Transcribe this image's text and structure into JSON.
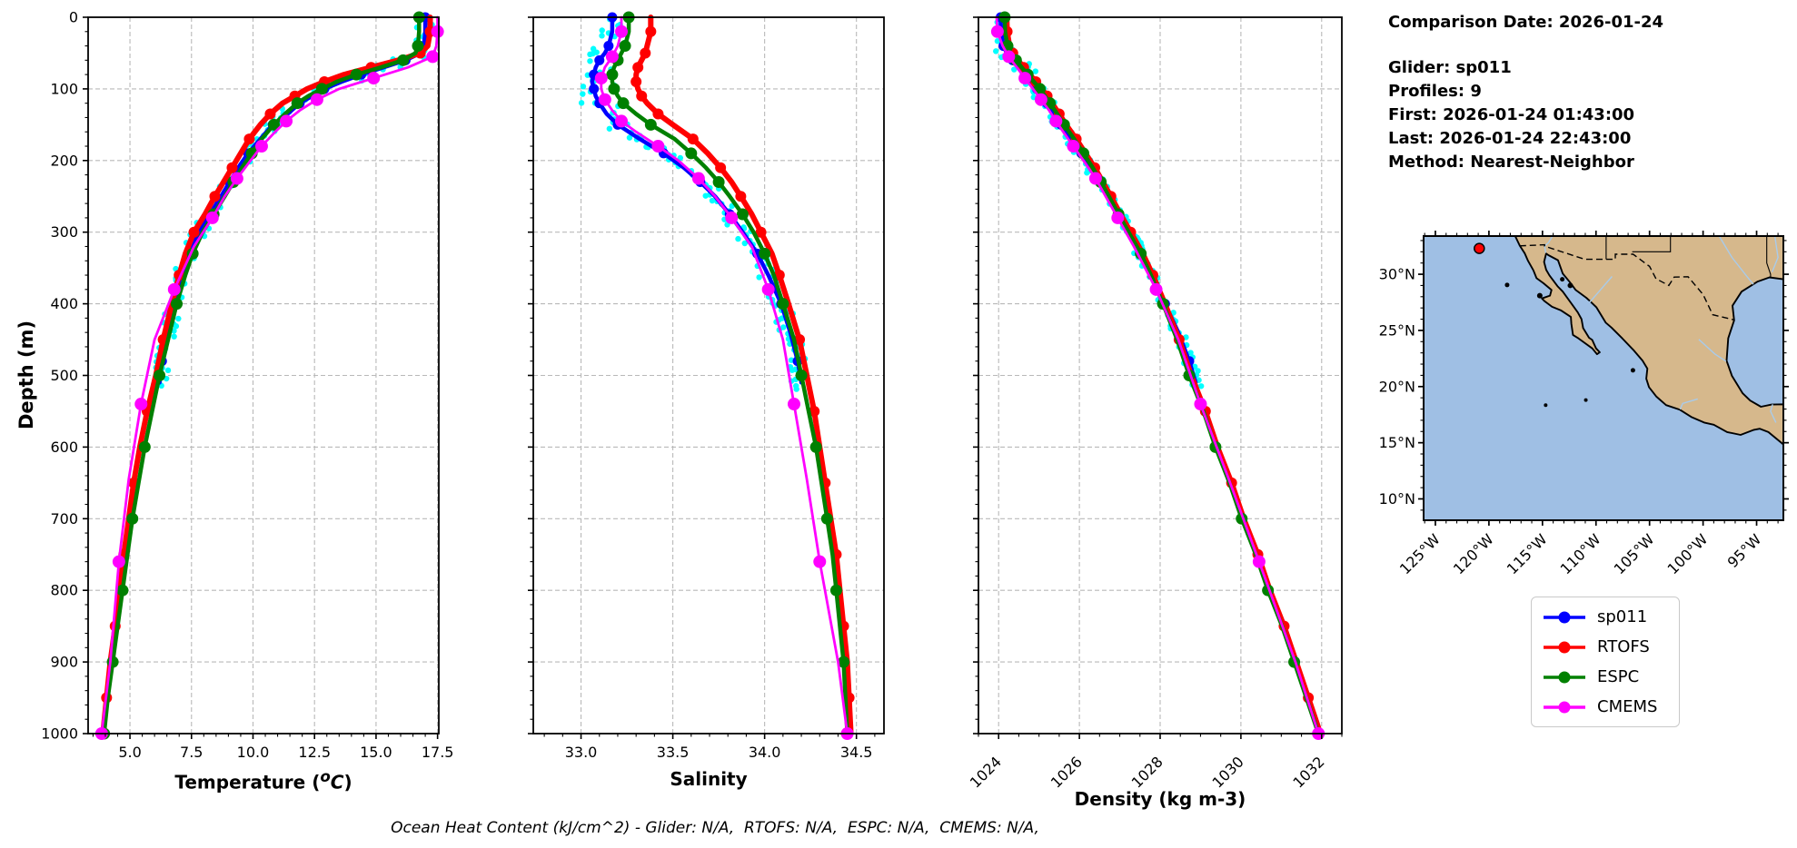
{
  "header": {
    "comparison_date": "Comparison Date: 2026-01-24",
    "glider": "Glider: sp011",
    "profiles": "Profiles: 9",
    "first": "First: 2026-01-24 01:43:00",
    "last": "Last: 2026-01-24 22:43:00",
    "method": "Method: Nearest-Neighbor"
  },
  "axes": {
    "temp_label_prefix": "Temperature (",
    "temp_label_sup": "o",
    "temp_label_c": "C",
    "temp_label_suffix": ")",
    "sal_label": "Salinity",
    "dens_label": "Density (kg m-3)",
    "depth_label": "Depth (m)"
  },
  "footer": {
    "ohc_text": "Ocean Heat Content (kJ/cm^2) - Glider: N/A,  RTOFS: N/A,  ESPC: N/A,  CMEMS: N/A,"
  },
  "chart_data": {
    "type": "line",
    "orientation": "depth-profile",
    "depth_axis": {
      "lim": [
        0,
        1000
      ],
      "ticks": [
        {
          "v": 0,
          "label": "0"
        },
        {
          "v": 100,
          "label": "100"
        },
        {
          "v": 200,
          "label": "200"
        },
        {
          "v": 300,
          "label": "300"
        },
        {
          "v": 400,
          "label": "400"
        },
        {
          "v": 500,
          "label": "500"
        },
        {
          "v": 600,
          "label": "600"
        },
        {
          "v": 700,
          "label": "700"
        },
        {
          "v": 800,
          "label": "800"
        },
        {
          "v": 900,
          "label": "900"
        },
        {
          "v": 1000,
          "label": "1000"
        }
      ],
      "minor_step": 20
    },
    "panels": {
      "temp": {
        "xlim": [
          3.3,
          17.55
        ],
        "xticks": [
          {
            "v": 5.0,
            "label": "5.0"
          },
          {
            "v": 7.5,
            "label": "7.5"
          },
          {
            "v": 10.0,
            "label": "10.0"
          },
          {
            "v": 12.5,
            "label": "12.5"
          },
          {
            "v": 15.0,
            "label": "15.0"
          },
          {
            "v": 17.5,
            "label": "17.5"
          }
        ],
        "minor_step": 0.5,
        "rotate_labels": false
      },
      "sal": {
        "xlim": [
          32.74,
          34.65
        ],
        "xticks": [
          {
            "v": 33.0,
            "label": "33.0"
          },
          {
            "v": 33.5,
            "label": "33.5"
          },
          {
            "v": 34.0,
            "label": "34.0"
          },
          {
            "v": 34.5,
            "label": "34.5"
          }
        ],
        "minor_step": 0.1,
        "rotate_labels": false
      },
      "dens": {
        "xlim": [
          1023.5,
          1032.5
        ],
        "xticks": [
          {
            "v": 1024,
            "label": "1024"
          },
          {
            "v": 1026,
            "label": "1026"
          },
          {
            "v": 1028,
            "label": "1028"
          },
          {
            "v": 1030,
            "label": "1030"
          },
          {
            "v": 1032,
            "label": "1032"
          }
        ],
        "minor_step": 0.5,
        "rotate_labels": true
      }
    },
    "series_meta": [
      {
        "name": "sp011",
        "color": "#0000ff",
        "line_width": 4.5,
        "marker_radius": 5.5
      },
      {
        "name": "RTOFS",
        "color": "#ff0000",
        "line_width": 6,
        "marker_radius": 6
      },
      {
        "name": "ESPC",
        "color": "#008000",
        "line_width": 4.5,
        "marker_radius": 6.5
      },
      {
        "name": "CMEMS",
        "color": "#ff00ff",
        "line_width": 2.8,
        "marker_radius": 7
      }
    ],
    "profiles": {
      "sp011": {
        "depths": [
          0,
          20,
          40,
          50,
          60,
          70,
          80,
          90,
          100,
          110,
          120,
          135,
          150,
          170,
          190,
          210,
          230,
          250,
          275,
          300,
          330,
          360,
          400,
          440,
          480,
          510
        ],
        "temp": [
          17.0,
          17.0,
          16.95,
          16.8,
          16.2,
          15.3,
          14.4,
          13.6,
          12.9,
          12.4,
          11.9,
          11.4,
          10.8,
          10.3,
          9.8,
          9.4,
          9.05,
          8.7,
          8.25,
          7.8,
          7.4,
          7.1,
          6.8,
          6.55,
          6.3,
          6.2
        ],
        "sal": [
          33.17,
          33.17,
          33.15,
          33.13,
          33.1,
          33.08,
          33.07,
          33.06,
          33.07,
          33.08,
          33.1,
          33.14,
          33.2,
          33.32,
          33.45,
          33.56,
          33.65,
          33.73,
          33.81,
          33.88,
          33.96,
          34.02,
          34.09,
          34.14,
          34.18,
          34.2
        ],
        "dens": [
          1024.05,
          1024.06,
          1024.12,
          1024.2,
          1024.35,
          1024.5,
          1024.65,
          1024.8,
          1024.95,
          1025.08,
          1025.2,
          1025.38,
          1025.55,
          1025.8,
          1026.05,
          1026.28,
          1026.5,
          1026.7,
          1026.95,
          1027.2,
          1027.5,
          1027.78,
          1028.12,
          1028.45,
          1028.72,
          1028.88
        ]
      },
      "RTOFS": {
        "depths": [
          0,
          20,
          40,
          50,
          60,
          70,
          80,
          90,
          100,
          110,
          120,
          135,
          150,
          170,
          190,
          210,
          230,
          250,
          275,
          300,
          330,
          360,
          400,
          450,
          500,
          550,
          600,
          650,
          700,
          750,
          800,
          850,
          900,
          950,
          1000
        ],
        "temp": [
          17.2,
          17.2,
          17.1,
          16.8,
          15.9,
          14.8,
          13.7,
          12.9,
          12.2,
          11.7,
          11.2,
          10.7,
          10.3,
          9.85,
          9.5,
          9.15,
          8.8,
          8.45,
          8.05,
          7.6,
          7.25,
          7.0,
          6.7,
          6.35,
          6.05,
          5.7,
          5.4,
          5.15,
          4.95,
          4.75,
          4.58,
          4.4,
          4.2,
          4.05,
          3.9
        ],
        "sal": [
          33.38,
          33.38,
          33.36,
          33.35,
          33.33,
          33.31,
          33.3,
          33.3,
          33.31,
          33.33,
          33.36,
          33.42,
          33.5,
          33.61,
          33.69,
          33.76,
          33.82,
          33.87,
          33.93,
          33.98,
          34.04,
          34.08,
          34.13,
          34.19,
          34.23,
          34.27,
          34.3,
          34.33,
          34.36,
          34.39,
          34.41,
          34.43,
          34.45,
          34.46,
          34.47
        ],
        "dens": [
          1024.2,
          1024.21,
          1024.27,
          1024.35,
          1024.48,
          1024.62,
          1024.77,
          1024.92,
          1025.07,
          1025.2,
          1025.32,
          1025.5,
          1025.67,
          1025.92,
          1026.15,
          1026.38,
          1026.58,
          1026.78,
          1027.02,
          1027.27,
          1027.57,
          1027.82,
          1028.12,
          1028.47,
          1028.77,
          1029.12,
          1029.42,
          1029.77,
          1030.07,
          1030.42,
          1030.72,
          1031.07,
          1031.37,
          1031.67,
          1031.97
        ]
      },
      "ESPC": {
        "depths": [
          0,
          20,
          40,
          50,
          60,
          70,
          80,
          90,
          100,
          110,
          120,
          135,
          150,
          170,
          190,
          210,
          230,
          250,
          275,
          300,
          330,
          360,
          400,
          450,
          500,
          550,
          600,
          650,
          700,
          750,
          800,
          850,
          900,
          950,
          1000
        ],
        "temp": [
          16.75,
          16.75,
          16.7,
          16.6,
          16.1,
          15.2,
          14.2,
          13.4,
          12.8,
          12.25,
          11.8,
          11.3,
          10.85,
          10.35,
          9.95,
          9.55,
          9.2,
          8.85,
          8.4,
          7.95,
          7.55,
          7.25,
          6.9,
          6.55,
          6.2,
          5.9,
          5.6,
          5.35,
          5.1,
          4.9,
          4.7,
          4.5,
          4.3,
          4.1,
          3.95
        ],
        "sal": [
          33.26,
          33.26,
          33.24,
          33.22,
          33.2,
          33.18,
          33.17,
          33.17,
          33.18,
          33.2,
          33.23,
          33.3,
          33.38,
          33.51,
          33.6,
          33.68,
          33.75,
          33.81,
          33.88,
          33.94,
          34.0,
          34.05,
          34.1,
          34.16,
          34.2,
          34.24,
          34.28,
          34.31,
          34.34,
          34.37,
          34.39,
          34.41,
          34.43,
          34.44,
          34.45
        ],
        "dens": [
          1024.15,
          1024.16,
          1024.22,
          1024.3,
          1024.43,
          1024.57,
          1024.72,
          1024.87,
          1025.02,
          1025.15,
          1025.27,
          1025.45,
          1025.62,
          1025.87,
          1026.1,
          1026.33,
          1026.53,
          1026.73,
          1026.97,
          1027.22,
          1027.52,
          1027.77,
          1028.07,
          1028.42,
          1028.72,
          1029.07,
          1029.37,
          1029.72,
          1030.02,
          1030.37,
          1030.67,
          1031.02,
          1031.32,
          1031.62,
          1031.92
        ]
      },
      "CMEMS": {
        "depths": [
          0,
          20,
          40,
          55,
          70,
          85,
          100,
          115,
          130,
          145,
          160,
          180,
          200,
          225,
          250,
          280,
          320,
          380,
          450,
          540,
          645,
          760,
          900,
          1000
        ],
        "temp": [
          17.5,
          17.5,
          17.45,
          17.3,
          16.3,
          14.9,
          13.5,
          12.6,
          11.9,
          11.35,
          10.9,
          10.35,
          9.9,
          9.35,
          8.85,
          8.35,
          7.6,
          6.8,
          6.0,
          5.45,
          4.95,
          4.55,
          4.2,
          3.85
        ],
        "sal": [
          33.22,
          33.22,
          33.2,
          33.17,
          33.13,
          33.11,
          33.11,
          33.13,
          33.17,
          33.22,
          33.3,
          33.42,
          33.53,
          33.64,
          33.73,
          33.82,
          33.93,
          34.02,
          34.1,
          34.16,
          34.23,
          34.3,
          34.4,
          34.45
        ],
        "dens": [
          1023.95,
          1023.97,
          1024.1,
          1024.25,
          1024.45,
          1024.65,
          1024.85,
          1025.05,
          1025.25,
          1025.42,
          1025.6,
          1025.85,
          1026.1,
          1026.4,
          1026.65,
          1026.95,
          1027.35,
          1027.9,
          1028.45,
          1029.0,
          1029.7,
          1030.45,
          1031.35,
          1031.92
        ]
      }
    },
    "glider_scatter": {
      "name": "glider raw observations",
      "color": "#00ffff",
      "based_on": "sp011",
      "max_depth": 518,
      "jitter": {
        "temp": 0.3,
        "sal": 0.055,
        "dens": 0.15
      }
    },
    "map": {
      "lon_lim": [
        -126.1,
        -92.5
      ],
      "lat_lim": [
        8.1,
        33.4
      ],
      "lon_ticks": [
        {
          "v": -125,
          "label": "125°W"
        },
        {
          "v": -120,
          "label": "120°W"
        },
        {
          "v": -115,
          "label": "115°W"
        },
        {
          "v": -110,
          "label": "110°W"
        },
        {
          "v": -105,
          "label": "105°W"
        },
        {
          "v": -100,
          "label": "100°W"
        },
        {
          "v": -95,
          "label": "95°W"
        }
      ],
      "lat_ticks": [
        {
          "v": 30,
          "label": "30°N"
        },
        {
          "v": 25,
          "label": "25°N"
        },
        {
          "v": 20,
          "label": "20°N"
        },
        {
          "v": 15,
          "label": "15°N"
        },
        {
          "v": 10,
          "label": "10°N"
        }
      ],
      "glider_position": {
        "lon": -120.9,
        "lat": 32.3
      },
      "ocean_color": "#9fbfe4",
      "land_color": "#d6b88c",
      "river_color": "#a9cbea",
      "marker_color": "#ff0000"
    },
    "grid_color": "#b9b9b9"
  }
}
